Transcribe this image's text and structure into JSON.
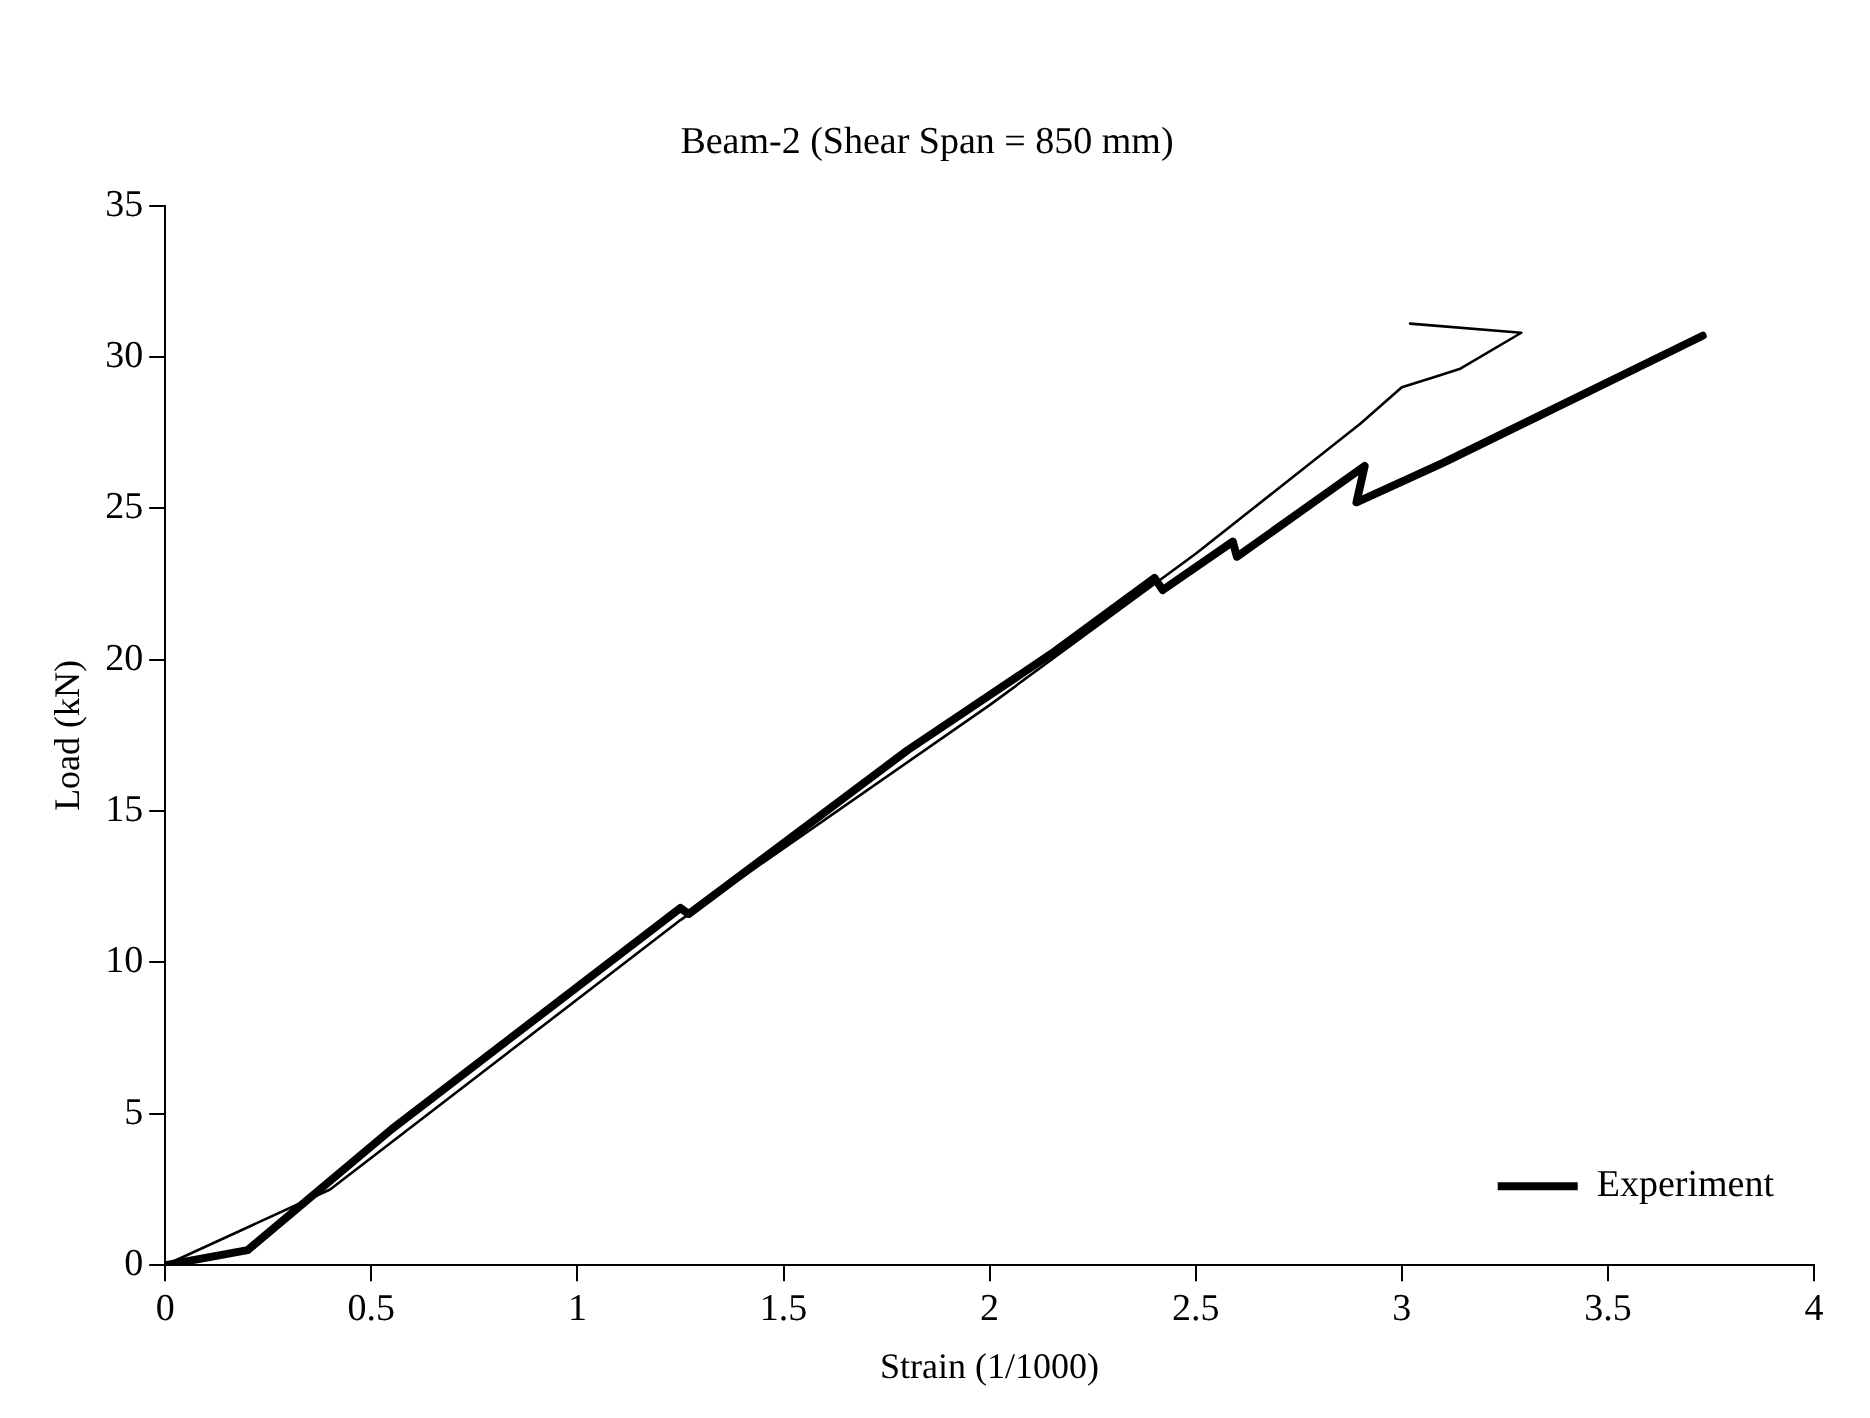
{
  "chart_data": {
    "type": "line",
    "title": "Beam-2 (Shear Span = 850 mm)",
    "xlabel": "Strain (1/1000)",
    "ylabel": "Load (kN)",
    "xlim": [
      0,
      4
    ],
    "xticks": [
      0,
      0.5,
      1,
      1.5,
      2,
      2.5,
      3,
      3.5,
      4
    ],
    "ylim": [
      0,
      35
    ],
    "yticks": [
      0,
      5,
      10,
      15,
      20,
      25,
      30,
      35
    ],
    "grid": false,
    "legend": "bottom right",
    "marker": "none",
    "line_style": "solid",
    "series": [
      {
        "color": "#000000",
        "x": [
          0,
          0.4,
          1.25,
          2,
          2.5,
          2.9,
          3.0,
          3.07,
          3.14,
          3.29,
          3.02
        ],
        "values": [
          0,
          2.5,
          11.4,
          18.5,
          23.5,
          27.8,
          29.0,
          29.3,
          29.6,
          30.8,
          31.1
        ]
      },
      {
        "name": "Experiment",
        "color": "#000000",
        "x": [
          0,
          0.2,
          0.55,
          1.25,
          1.27,
          1.8,
          2.15,
          2.4,
          2.42,
          2.59,
          2.6,
          2.91,
          2.89,
          3.1,
          3.4,
          3.73
        ],
        "values": [
          0,
          0.5,
          4.5,
          11.8,
          11.6,
          17,
          20.2,
          22.7,
          22.3,
          23.9,
          23.4,
          26.4,
          25.2,
          26.5,
          28.5,
          30.7
        ]
      }
    ]
  }
}
